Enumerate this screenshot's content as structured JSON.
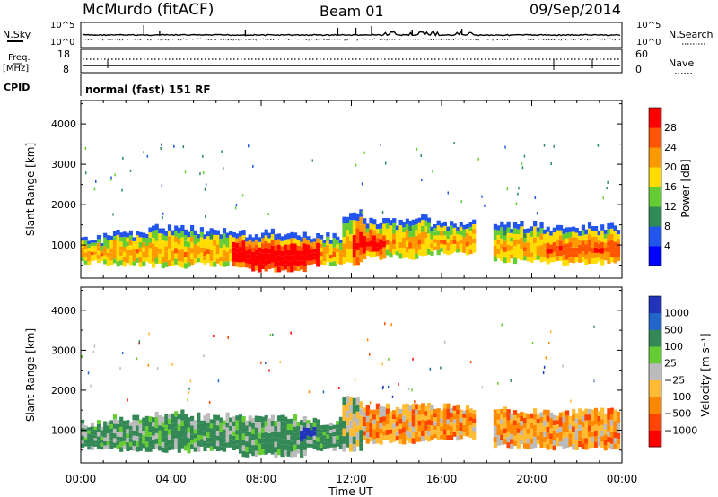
{
  "header": {
    "station": "McMurdo (fitACF)",
    "beam": "Beam 01",
    "date": "09/Sep/2014"
  },
  "summary_panels": {
    "nsky_label": "N.Sky",
    "nsearch_label": "N.Search",
    "count_ticks": [
      "10^5",
      "10^0"
    ],
    "freq_label_1": "Freq.",
    "freq_label_2": "[MHz]",
    "freq_ticks": [
      "18",
      "8"
    ],
    "nave_label": "Nave",
    "nave_ticks": [
      "60",
      "0"
    ],
    "cpid_label": "CPID",
    "cpid_value": "normal (fast) 151 RF"
  },
  "chart_data": [
    {
      "type": "heatmap",
      "name": "power",
      "xlabel": "Time UT",
      "ylabel": "Slant Range [km]",
      "x_ticks": [
        "00:00",
        "04:00",
        "08:00",
        "12:00",
        "16:00",
        "20:00",
        "00:00"
      ],
      "xlim_hours": [
        0,
        24
      ],
      "y_ticks": [
        1000,
        2000,
        3000,
        4000
      ],
      "ylim": [
        180,
        4580
      ],
      "colorbar_label": "Power [dB]",
      "colorbar_ticks": [
        4,
        8,
        12,
        16,
        20,
        24,
        28
      ],
      "colorbar_range": [
        0,
        32
      ],
      "colors": [
        "#0000ff",
        "#2255ee",
        "#2e8b57",
        "#66cc33",
        "#ffdd00",
        "#ff9900",
        "#ff5500",
        "#ff0000"
      ]
    },
    {
      "type": "heatmap",
      "name": "velocity",
      "xlabel": "Time UT",
      "ylabel": "Slant Range [km]",
      "x_ticks": [
        "00:00",
        "04:00",
        "08:00",
        "12:00",
        "16:00",
        "20:00",
        "00:00"
      ],
      "xlim_hours": [
        0,
        24
      ],
      "y_ticks": [
        1000,
        2000,
        3000,
        4000
      ],
      "ylim": [
        180,
        4580
      ],
      "colorbar_label": "Velocity [m s⁻¹]",
      "colorbar_ticks": [
        "1000",
        "500",
        "100",
        "25",
        "−25",
        "−100",
        "−500",
        "−1000"
      ],
      "colors": [
        "#2233bb",
        "#2266cc",
        "#338855",
        "#66cc33",
        "#bbbbbb",
        "#ffbb33",
        "#ff8800",
        "#ff4400",
        "#ff0000"
      ]
    }
  ]
}
